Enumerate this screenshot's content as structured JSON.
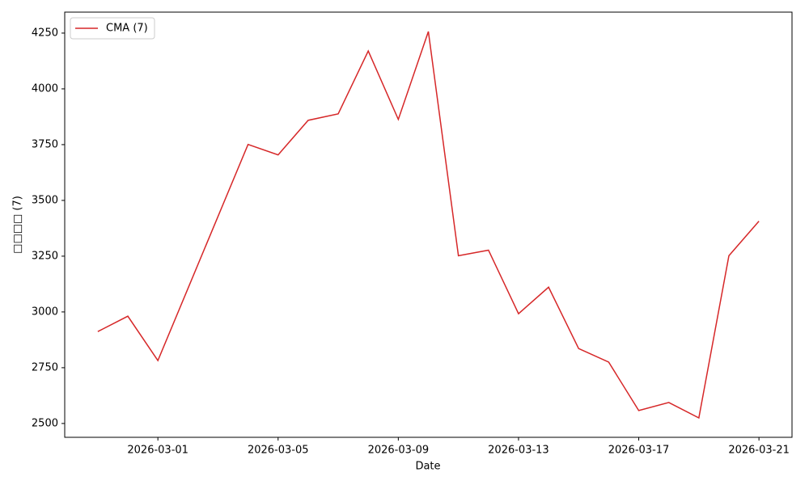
{
  "chart_data": {
    "type": "line",
    "x": [
      "2026-02-27",
      "2026-02-28",
      "2026-03-01",
      "2026-03-02",
      "2026-03-03",
      "2026-03-04",
      "2026-03-05",
      "2026-03-06",
      "2026-03-07",
      "2026-03-08",
      "2026-03-09",
      "2026-03-10",
      "2026-03-11",
      "2026-03-12",
      "2026-03-13",
      "2026-03-14",
      "2026-03-15",
      "2026-03-16",
      "2026-03-17",
      "2026-03-18",
      "2026-03-19",
      "2026-03-20",
      "2026-03-21"
    ],
    "series": [
      {
        "name": "CMA (7)",
        "color": "#d62728",
        "values": [
          2912,
          2981,
          2782,
          3105,
          3428,
          3751,
          3704,
          3859,
          3888,
          4170,
          3863,
          4257,
          3252,
          3277,
          2992,
          3111,
          2836,
          2775,
          2558,
          2594,
          2525,
          3252,
          3407
        ]
      }
    ],
    "xlabel": "Date",
    "ylabel": "□□□□ (7)",
    "xlim": [
      "2026-02-25T21:36",
      "2026-03-22T02:24"
    ],
    "xticks": [
      "2026-03-01",
      "2026-03-05",
      "2026-03-09",
      "2026-03-13",
      "2026-03-17",
      "2026-03-21"
    ],
    "ylim": [
      2438,
      4344
    ],
    "yticks": [
      2500,
      2750,
      3000,
      3250,
      3500,
      3750,
      4000,
      4250
    ],
    "grid": false,
    "legend": "upper left"
  }
}
